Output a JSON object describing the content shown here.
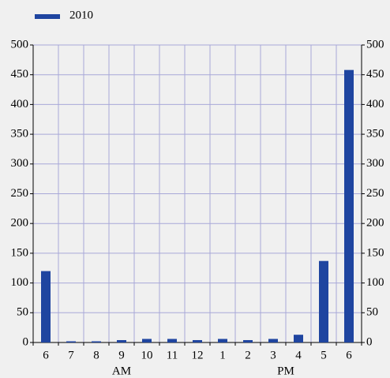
{
  "chart_data": {
    "type": "bar",
    "categories": [
      "6",
      "7",
      "8",
      "9",
      "10",
      "11",
      "12",
      "1",
      "2",
      "3",
      "4",
      "5",
      "6"
    ],
    "x_groups": [
      "AM",
      "PM"
    ],
    "series": [
      {
        "name": "2010",
        "color": "#1f45a0",
        "values": [
          120,
          2,
          2,
          4,
          6,
          6,
          4,
          6,
          4,
          6,
          13,
          137,
          458
        ]
      }
    ],
    "ylim": [
      0,
      500
    ],
    "yticks": [
      0,
      50,
      100,
      150,
      200,
      250,
      300,
      350,
      400,
      450,
      500
    ],
    "y2lim": [
      0,
      500
    ],
    "y2ticks": [
      0,
      50,
      100,
      150,
      200,
      250,
      300,
      350,
      400,
      450,
      500
    ],
    "grid": true,
    "legend": "top-left"
  }
}
